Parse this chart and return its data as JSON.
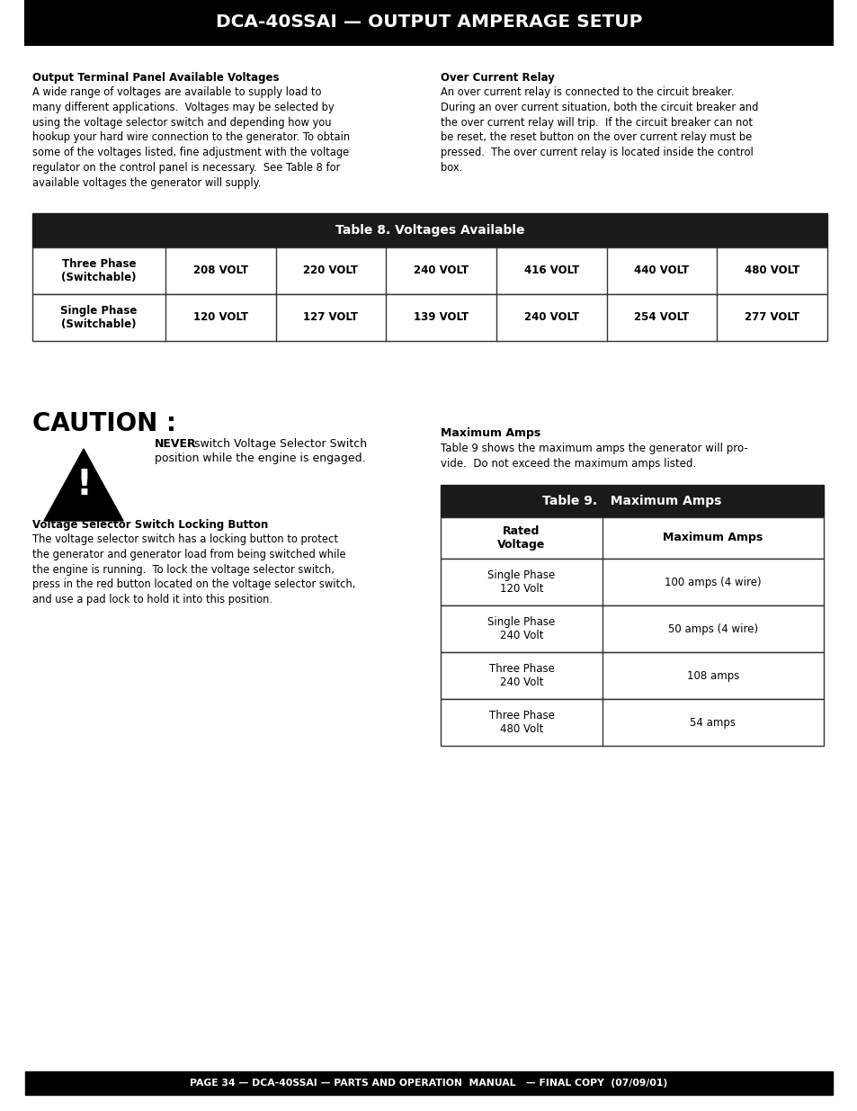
{
  "title": "DCA-40SSAI — OUTPUT AMPERAGE SETUP",
  "bg_color": "#ffffff",
  "header_bg": "#000000",
  "header_fg": "#ffffff",
  "footer_text": "PAGE 34 — DCA-40SSAI — PARTS AND OPERATION  MANUAL   — FINAL COPY  (07/09/01)",
  "section1_title": "Output Terminal Panel Available Voltages",
  "section1_text": "A wide range of voltages are available to supply load to\nmany different applications.  Voltages may be selected by\nusing the voltage selector switch and depending how you\nhookup your hard wire connection to the generator. To obtain\nsome of the voltages listed, fine adjustment with the voltage\nregulator on the control panel is necessary.  See Table 8 for\navailable voltages the generator will supply.",
  "section2_title": "Over Current Relay",
  "section2_text": "An over current relay is connected to the circuit breaker.\nDuring an over current situation, both the circuit breaker and\nthe over current relay will trip.  If the circuit breaker can not\nbe reset, the reset button on the over current relay must be\npressed.  The over current relay is located inside the control\nbox.",
  "table8_title": "Table 8. Voltages Available",
  "table8_row1_label": "Three Phase\n(Switchable)",
  "table8_row2_label": "Single Phase\n(Switchable)",
  "table8_cols": [
    "208 VOLT",
    "220 VOLT",
    "240 VOLT",
    "416 VOLT",
    "440 VOLT",
    "480 VOLT"
  ],
  "table8_row2": [
    "120 VOLT",
    "127 VOLT",
    "139 VOLT",
    "240 VOLT",
    "254 VOLT",
    "277 VOLT"
  ],
  "caution_title": "CAUTION :",
  "caution_never": "NEVER",
  "caution_line1": " switch Voltage Selector Switch",
  "caution_line2": "position while the engine is engaged.",
  "max_amps_title": "Maximum Amps",
  "max_amps_text": "Table 9 shows the maximum amps the generator will pro-\nvide.  Do not exceed the maximum amps listed.",
  "vss_title": "Voltage Selector Switch Locking Button",
  "vss_text": "The voltage selector switch has a locking button to protect\nthe generator and generator load from being switched while\nthe engine is running.  To lock the voltage selector switch,\npress in the red button located on the voltage selector switch,\nand use a pad lock to hold it into this position.",
  "table9_title": "Table 9.   Maximum Amps",
  "table9_header1": "Rated\nVoltage",
  "table9_header2": "Maximum Amps",
  "table9_rows": [
    [
      "Single Phase\n120 Volt",
      "100 amps (4 wire)"
    ],
    [
      "Single Phase\n240 Volt",
      "50 amps (4 wire)"
    ],
    [
      "Three Phase\n240 Volt",
      "108 amps"
    ],
    [
      "Three Phase\n480 Volt",
      "54 amps"
    ]
  ]
}
